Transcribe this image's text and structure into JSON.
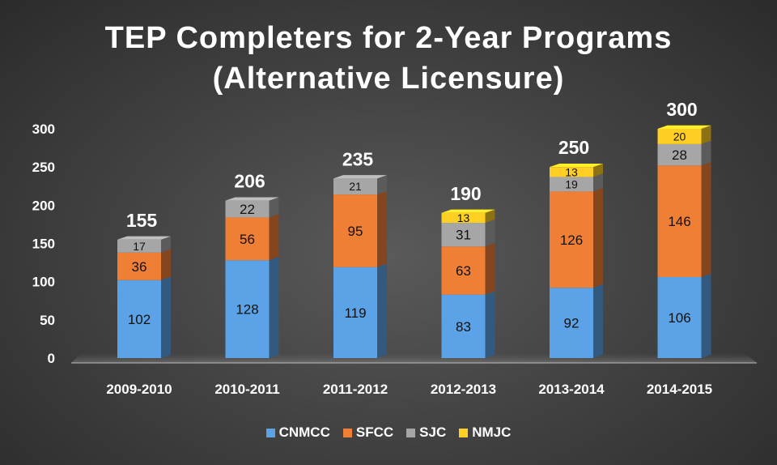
{
  "title": {
    "line1": "TEP Completers for 2-Year Programs",
    "line2": "(Alternative Licensure)"
  },
  "chart_data": {
    "type": "bar",
    "stacked": true,
    "title": "TEP Completers for 2-Year Programs (Alternative Licensure)",
    "xlabel": "",
    "ylabel": "",
    "ylim": [
      0,
      300
    ],
    "yticks": [
      0,
      50,
      100,
      150,
      200,
      250,
      300
    ],
    "categories": [
      "2009-2010",
      "2010-2011",
      "2011-2012",
      "2012-2013",
      "2013-2014",
      "2014-2015"
    ],
    "series": [
      {
        "name": "CNMCC",
        "color": "#5ba3e6",
        "values": [
          102,
          128,
          119,
          83,
          92,
          106
        ]
      },
      {
        "name": "SFCC",
        "color": "#f07f36",
        "values": [
          36,
          56,
          95,
          63,
          126,
          146
        ]
      },
      {
        "name": "SJC",
        "color": "#a6a6a6",
        "values": [
          17,
          22,
          21,
          31,
          19,
          28
        ]
      },
      {
        "name": "NMJC",
        "color": "#ffd023",
        "values": [
          null,
          null,
          null,
          13,
          13,
          20
        ]
      }
    ],
    "totals": [
      155,
      206,
      235,
      190,
      250,
      300
    ],
    "legend_position": "bottom"
  }
}
